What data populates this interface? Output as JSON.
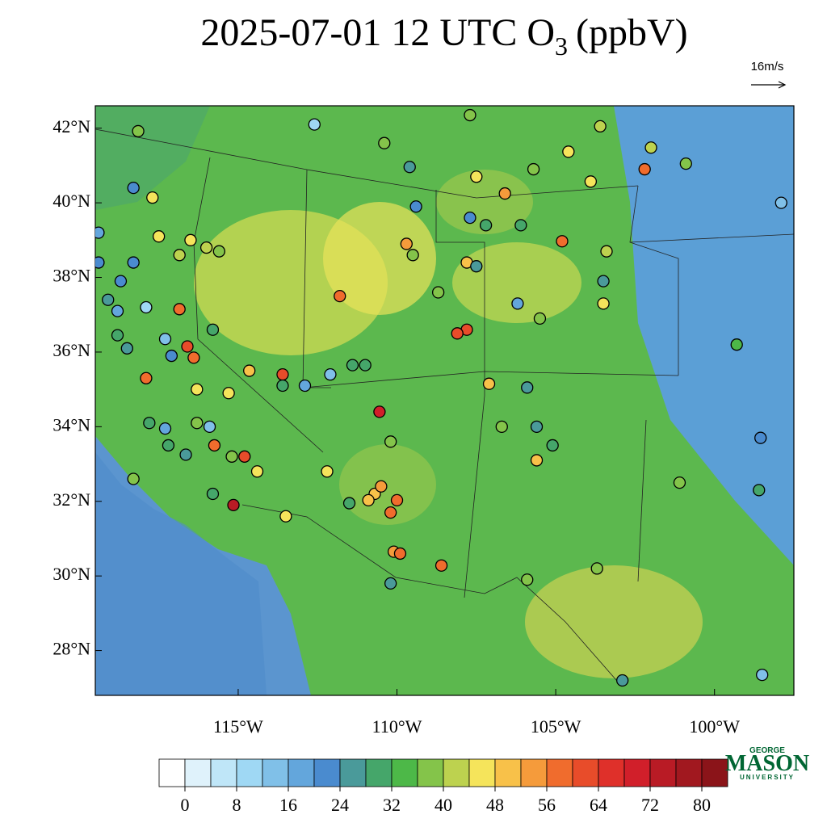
{
  "header": {
    "title_main": "2025-07-01 12 UTC O",
    "title_sub": "3",
    "title_unit": "(ppbV)",
    "wind_reference": "16m/s"
  },
  "map": {
    "lon_lim": [
      -119.5,
      -97.5
    ],
    "lat_lim": [
      26.8,
      42.6
    ],
    "lat_ticks": [
      {
        "value": 28,
        "label": "28°N"
      },
      {
        "value": 30,
        "label": "30°N"
      },
      {
        "value": 32,
        "label": "32°N"
      },
      {
        "value": 34,
        "label": "34°N"
      },
      {
        "value": 36,
        "label": "36°N"
      },
      {
        "value": 38,
        "label": "38°N"
      },
      {
        "value": 40,
        "label": "40°N"
      },
      {
        "value": 42,
        "label": "42°N"
      }
    ],
    "lon_ticks": [
      {
        "value": -115,
        "label": "115°W"
      },
      {
        "value": -110,
        "label": "110°W"
      },
      {
        "value": -105,
        "label": "105°W"
      },
      {
        "value": -100,
        "label": "100°W"
      }
    ],
    "stations": [
      {
        "lon": -118.15,
        "lat": 41.92,
        "o3": 36
      },
      {
        "lon": -117.7,
        "lat": 40.14,
        "o3": 44
      },
      {
        "lon": -118.3,
        "lat": 40.4,
        "o3": 20
      },
      {
        "lon": -112.6,
        "lat": 42.1,
        "o3": 8
      },
      {
        "lon": -110.4,
        "lat": 41.6,
        "o3": 36
      },
      {
        "lon": -109.6,
        "lat": 40.96,
        "o3": 24
      },
      {
        "lon": -107.7,
        "lat": 42.35,
        "o3": 36
      },
      {
        "lon": -107.5,
        "lat": 40.7,
        "o3": 44
      },
      {
        "lon": -106.6,
        "lat": 40.25,
        "o3": 52
      },
      {
        "lon": -103.6,
        "lat": 42.05,
        "o3": 40
      },
      {
        "lon": -102.0,
        "lat": 41.48,
        "o3": 40
      },
      {
        "lon": -102.2,
        "lat": 40.9,
        "o3": 56
      },
      {
        "lon": -100.9,
        "lat": 41.05,
        "o3": 36
      },
      {
        "lon": -104.6,
        "lat": 41.37,
        "o3": 44
      },
      {
        "lon": -103.9,
        "lat": 40.57,
        "o3": 44
      },
      {
        "lon": -105.7,
        "lat": 40.9,
        "o3": 36
      },
      {
        "lon": -104.8,
        "lat": 38.97,
        "o3": 56
      },
      {
        "lon": -103.4,
        "lat": 38.7,
        "o3": 40
      },
      {
        "lon": -103.5,
        "lat": 37.9,
        "o3": 24
      },
      {
        "lon": -103.5,
        "lat": 37.3,
        "o3": 44
      },
      {
        "lon": -99.3,
        "lat": 36.2,
        "o3": 32
      },
      {
        "lon": -98.55,
        "lat": 33.7,
        "o3": 20
      },
      {
        "lon": -98.6,
        "lat": 32.3,
        "o3": 28
      },
      {
        "lon": -101.1,
        "lat": 32.5,
        "o3": 36
      },
      {
        "lon": -97.9,
        "lat": 40.0,
        "o3": 12
      },
      {
        "lon": -98.5,
        "lat": 27.35,
        "o3": 12
      },
      {
        "lon": -102.9,
        "lat": 27.2,
        "o3": 24
      },
      {
        "lon": -103.7,
        "lat": 30.2,
        "o3": 36
      },
      {
        "lon": -105.9,
        "lat": 29.9,
        "o3": 36
      },
      {
        "lon": -105.6,
        "lat": 33.1,
        "o3": 48
      },
      {
        "lon": -105.1,
        "lat": 33.5,
        "o3": 28
      },
      {
        "lon": -105.6,
        "lat": 34.0,
        "o3": 24
      },
      {
        "lon": -105.9,
        "lat": 35.05,
        "o3": 24
      },
      {
        "lon": -107.1,
        "lat": 35.15,
        "o3": 48
      },
      {
        "lon": -106.7,
        "lat": 34.0,
        "o3": 36
      },
      {
        "lon": -105.5,
        "lat": 36.9,
        "o3": 36
      },
      {
        "lon": -106.2,
        "lat": 37.3,
        "o3": 16
      },
      {
        "lon": -107.8,
        "lat": 36.6,
        "o3": 60
      },
      {
        "lon": -108.1,
        "lat": 36.5,
        "o3": 60
      },
      {
        "lon": -108.7,
        "lat": 37.6,
        "o3": 36
      },
      {
        "lon": -107.8,
        "lat": 38.4,
        "o3": 48
      },
      {
        "lon": -107.5,
        "lat": 38.3,
        "o3": 24
      },
      {
        "lon": -107.7,
        "lat": 39.6,
        "o3": 20
      },
      {
        "lon": -107.2,
        "lat": 39.4,
        "o3": 28
      },
      {
        "lon": -106.1,
        "lat": 39.4,
        "o3": 28
      },
      {
        "lon": -109.7,
        "lat": 38.9,
        "o3": 52
      },
      {
        "lon": -109.4,
        "lat": 39.9,
        "o3": 20
      },
      {
        "lon": -109.5,
        "lat": 38.6,
        "o3": 36
      },
      {
        "lon": -110.55,
        "lat": 34.4,
        "o3": 68
      },
      {
        "lon": -110.2,
        "lat": 33.6,
        "o3": 36
      },
      {
        "lon": -110.7,
        "lat": 32.2,
        "o3": 48
      },
      {
        "lon": -110.5,
        "lat": 32.4,
        "o3": 52
      },
      {
        "lon": -110.9,
        "lat": 32.03,
        "o3": 48
      },
      {
        "lon": -110.0,
        "lat": 32.03,
        "o3": 56
      },
      {
        "lon": -110.2,
        "lat": 31.7,
        "o3": 56
      },
      {
        "lon": -110.1,
        "lat": 30.65,
        "o3": 52
      },
      {
        "lon": -109.9,
        "lat": 30.6,
        "o3": 56
      },
      {
        "lon": -110.2,
        "lat": 29.8,
        "o3": 24
      },
      {
        "lon": -108.6,
        "lat": 30.28,
        "o3": 56
      },
      {
        "lon": -113.5,
        "lat": 31.6,
        "o3": 44
      },
      {
        "lon": -115.15,
        "lat": 31.9,
        "o3": 72
      },
      {
        "lon": -115.8,
        "lat": 32.2,
        "o3": 28
      },
      {
        "lon": -115.75,
        "lat": 33.5,
        "o3": 56
      },
      {
        "lon": -115.2,
        "lat": 33.2,
        "o3": 36
      },
      {
        "lon": -114.8,
        "lat": 33.2,
        "o3": 60
      },
      {
        "lon": -114.4,
        "lat": 32.8,
        "o3": 44
      },
      {
        "lon": -115.9,
        "lat": 34.0,
        "o3": 12
      },
      {
        "lon": -112.1,
        "lat": 35.4,
        "o3": 12
      },
      {
        "lon": -113.6,
        "lat": 35.4,
        "o3": 60
      },
      {
        "lon": -113.6,
        "lat": 35.1,
        "o3": 28
      },
      {
        "lon": -112.9,
        "lat": 35.1,
        "o3": 16
      },
      {
        "lon": -114.65,
        "lat": 35.5,
        "o3": 48
      },
      {
        "lon": -115.3,
        "lat": 34.9,
        "o3": 44
      },
      {
        "lon": -116.6,
        "lat": 36.15,
        "o3": 60
      },
      {
        "lon": -116.4,
        "lat": 35.85,
        "o3": 56
      },
      {
        "lon": -116.85,
        "lat": 37.15,
        "o3": 56
      },
      {
        "lon": -115.8,
        "lat": 36.6,
        "o3": 28
      },
      {
        "lon": -116.3,
        "lat": 35.0,
        "o3": 44
      },
      {
        "lon": -116.3,
        "lat": 34.1,
        "o3": 36
      },
      {
        "lon": -117.9,
        "lat": 35.3,
        "o3": 56
      },
      {
        "lon": -117.8,
        "lat": 34.1,
        "o3": 28
      },
      {
        "lon": -117.2,
        "lat": 33.5,
        "o3": 28
      },
      {
        "lon": -116.65,
        "lat": 33.25,
        "o3": 24
      },
      {
        "lon": -117.3,
        "lat": 33.95,
        "o3": 16
      },
      {
        "lon": -118.8,
        "lat": 36.45,
        "o3": 28
      },
      {
        "lon": -118.5,
        "lat": 36.1,
        "o3": 24
      },
      {
        "lon": -118.8,
        "lat": 37.1,
        "o3": 16
      },
      {
        "lon": -119.1,
        "lat": 37.4,
        "o3": 24
      },
      {
        "lon": -118.7,
        "lat": 37.9,
        "o3": 20
      },
      {
        "lon": -118.3,
        "lat": 38.4,
        "o3": 20
      },
      {
        "lon": -117.9,
        "lat": 37.2,
        "o3": 8
      },
      {
        "lon": -117.3,
        "lat": 36.35,
        "o3": 12
      },
      {
        "lon": -117.1,
        "lat": 35.9,
        "o3": 20
      },
      {
        "lon": -117.5,
        "lat": 39.1,
        "o3": 44
      },
      {
        "lon": -116.85,
        "lat": 38.6,
        "o3": 40
      },
      {
        "lon": -116.5,
        "lat": 39.0,
        "o3": 44
      },
      {
        "lon": -116.0,
        "lat": 38.8,
        "o3": 40
      },
      {
        "lon": -115.6,
        "lat": 38.7,
        "o3": 36
      },
      {
        "lon": -111.8,
        "lat": 37.5,
        "o3": 56
      },
      {
        "lon": -111.0,
        "lat": 35.65,
        "o3": 28
      },
      {
        "lon": -111.4,
        "lat": 35.65,
        "o3": 28
      },
      {
        "lon": -112.2,
        "lat": 32.8,
        "o3": 44
      },
      {
        "lon": -111.5,
        "lat": 31.95,
        "o3": 28
      },
      {
        "lon": -119.4,
        "lat": 39.2,
        "o3": 16
      },
      {
        "lon": -119.4,
        "lat": 38.4,
        "o3": 20
      },
      {
        "lon": -118.3,
        "lat": 32.6,
        "o3": 36
      }
    ]
  },
  "colorbar": {
    "under_color": "#ffffff",
    "levels": [
      0,
      4,
      8,
      12,
      16,
      20,
      24,
      28,
      32,
      36,
      40,
      44,
      48,
      52,
      56,
      60,
      64,
      68,
      72,
      76,
      80,
      84
    ],
    "colors": [
      "#dff2fb",
      "#bfe6f8",
      "#9fd8f4",
      "#80c0e8",
      "#63a6dc",
      "#4a8bcf",
      "#4a9a9a",
      "#45a66a",
      "#4db848",
      "#84c44a",
      "#bdd24f",
      "#f5e45b",
      "#f8c149",
      "#f59b3b",
      "#f06c2d",
      "#e84c2a",
      "#df302a",
      "#d11f2a",
      "#b91b25",
      "#a1181f",
      "#8b1419"
    ],
    "ticks": [
      0,
      8,
      16,
      24,
      32,
      40,
      48,
      56,
      64,
      72,
      80
    ]
  },
  "logo": {
    "top": "GEORGE",
    "name": "MASON",
    "bottom": "UNIVERSITY"
  }
}
